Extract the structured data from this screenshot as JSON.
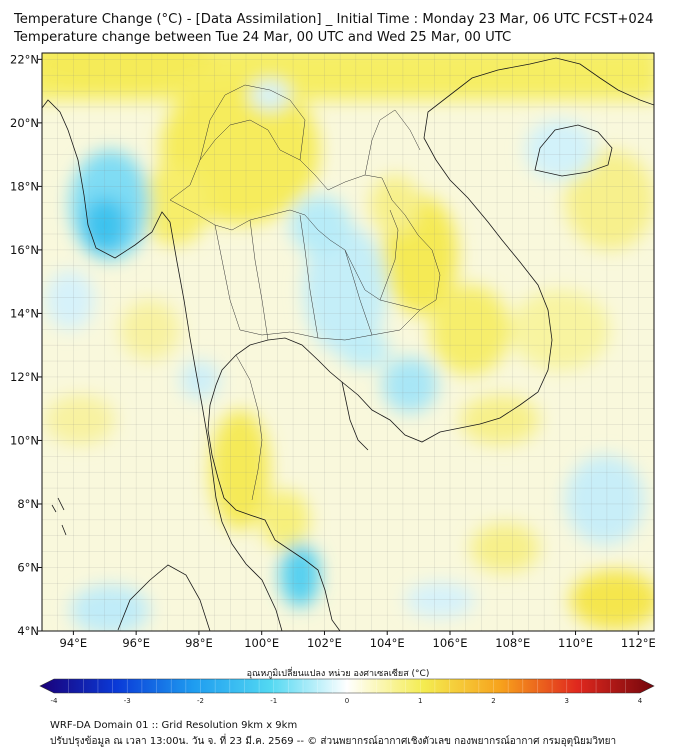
{
  "title": {
    "line1": "Temperature Change (°C) - [Data Assimilation] _ Initial Time : Monday 23 Mar, 06 UTC FCST+024",
    "line2": "Temperature change between Tue 24 Mar, 00 UTC and Wed 25 Mar, 00 UTC"
  },
  "map": {
    "lon_range": [
      93,
      112.5
    ],
    "lat_range": [
      4,
      22.2
    ],
    "lat_ticks": [
      {
        "value": 4,
        "label": "4°N"
      },
      {
        "value": 6,
        "label": "6°N"
      },
      {
        "value": 8,
        "label": "8°N"
      },
      {
        "value": 10,
        "label": "10°N"
      },
      {
        "value": 12,
        "label": "12°N"
      },
      {
        "value": 14,
        "label": "14°N"
      },
      {
        "value": 16,
        "label": "16°N"
      },
      {
        "value": 18,
        "label": "18°N"
      },
      {
        "value": 20,
        "label": "20°N"
      },
      {
        "value": 22,
        "label": "22°N"
      }
    ],
    "lon_ticks": [
      {
        "value": 94,
        "label": "94°E"
      },
      {
        "value": 96,
        "label": "96°E"
      },
      {
        "value": 98,
        "label": "98°E"
      },
      {
        "value": 100,
        "label": "100°E"
      },
      {
        "value": 102,
        "label": "102°E"
      },
      {
        "value": 104,
        "label": "104°E"
      },
      {
        "value": 106,
        "label": "106°E"
      },
      {
        "value": 108,
        "label": "108°E"
      },
      {
        "value": 110,
        "label": "110°E"
      },
      {
        "value": 112,
        "label": "112°E"
      }
    ]
  },
  "colorbar": {
    "title": "อุณหภูมิเปลี่ยนแปลง หน่วย องศาเซลเซียส (°C)",
    "min": -4,
    "max": 4,
    "tick_labels": [
      {
        "value": -4,
        "label": "-4"
      },
      {
        "value": -3,
        "label": "-3"
      },
      {
        "value": -2,
        "label": "-2"
      },
      {
        "value": -1,
        "label": "-1"
      },
      {
        "value": 0,
        "label": "0"
      },
      {
        "value": 1,
        "label": "1"
      },
      {
        "value": 2,
        "label": "2"
      },
      {
        "value": 3,
        "label": "3"
      },
      {
        "value": 4,
        "label": "4"
      }
    ],
    "colors": [
      "#1a0078",
      "#0a3ad8",
      "#1e9cf0",
      "#52d8f2",
      "#ffffff",
      "#f4ec50",
      "#f7a21c",
      "#e0281e",
      "#74060c"
    ]
  },
  "footer": {
    "line1": "WRF-DA Domain 01 :: Grid Resolution 9km x 9km",
    "line2": "ปรับปรุงข้อมูล ณ เวลา 13:00น. วัน จ. ที่ 23 มี.ค. 2569 -- © ส่วนพยากรณ์อากาศเชิงตัวเลข กองพยากรณ์อากาศ กรมอุตุนิยมวิทยา"
  }
}
